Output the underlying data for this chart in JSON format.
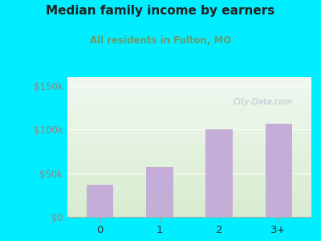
{
  "categories": [
    "0",
    "1",
    "2",
    "3+"
  ],
  "values": [
    37000,
    57000,
    100000,
    107000
  ],
  "bar_color": "#c4aed8",
  "title": "Median family income by earners",
  "subtitle": "All residents in Fulton, MO",
  "title_color": "#222222",
  "subtitle_color": "#6a9a6a",
  "background_color": "#00eeff",
  "plot_area_color_top": "#f0f8f0",
  "plot_area_color_bottom": "#d8ecd0",
  "ytick_values": [
    0,
    50000,
    100000,
    150000
  ],
  "ytick_labels": [
    "$0",
    "$50k",
    "$100k",
    "$150k"
  ],
  "ylim": [
    0,
    160000
  ],
  "xlim_left": -0.55,
  "xlim_right": 3.55,
  "bar_width": 0.45,
  "watermark": "City-Data.com",
  "watermark_color": "#aabbcc",
  "ytick_color": "#888888",
  "xtick_color": "#333333",
  "grid_color": "#dddddd"
}
